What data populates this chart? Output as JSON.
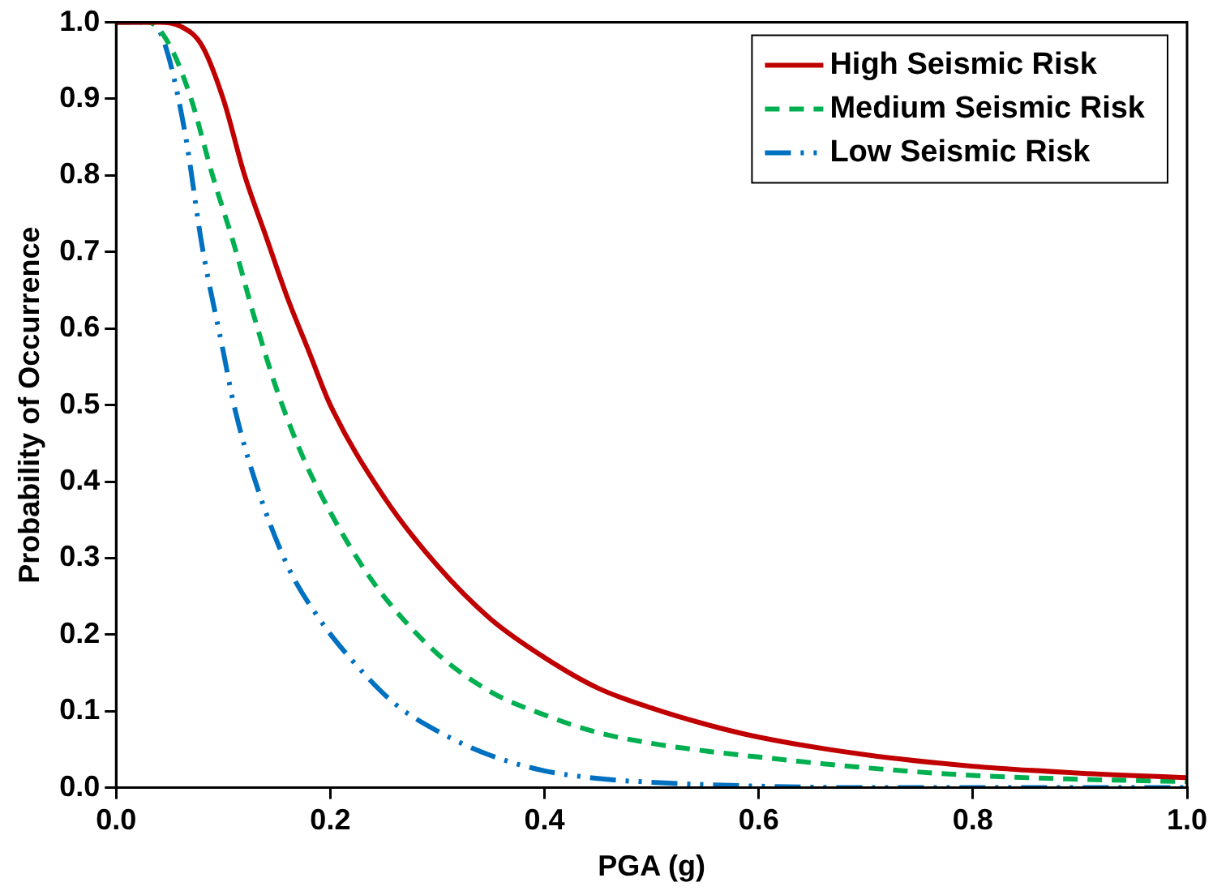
{
  "chart_data": {
    "type": "line",
    "xlabel": "PGA (g)",
    "ylabel": "Probability of Occurrence",
    "xlim": [
      0,
      1
    ],
    "xticks": [
      {
        "value": 0,
        "label": "0.0"
      },
      {
        "value": 0.2,
        "label": "0.2"
      },
      {
        "value": 0.4,
        "label": "0.4"
      },
      {
        "value": 0.6,
        "label": "0.6"
      },
      {
        "value": 0.8,
        "label": "0.8"
      },
      {
        "value": 1,
        "label": "1.0"
      }
    ],
    "ylim": [
      0,
      1
    ],
    "yticks": [
      {
        "value": 0,
        "label": "0.0"
      },
      {
        "value": 0.1,
        "label": "0.1"
      },
      {
        "value": 0.2,
        "label": "0.2"
      },
      {
        "value": 0.3,
        "label": "0.3"
      },
      {
        "value": 0.4,
        "label": "0.4"
      },
      {
        "value": 0.5,
        "label": "0.5"
      },
      {
        "value": 0.6,
        "label": "0.6"
      },
      {
        "value": 0.7,
        "label": "0.7"
      },
      {
        "value": 0.8,
        "label": "0.8"
      },
      {
        "value": 0.9,
        "label": "0.9"
      },
      {
        "value": 1,
        "label": "1.0"
      }
    ],
    "grid": false,
    "legend": "top right",
    "marker": "none",
    "series": [
      {
        "name": "High Seismic Risk",
        "color": "#c00000",
        "line_style": "solid",
        "x": [
          0,
          0.04,
          0.06,
          0.08,
          0.1,
          0.12,
          0.14,
          0.16,
          0.18,
          0.2,
          0.25,
          0.3,
          0.35,
          0.4,
          0.45,
          0.5,
          0.55,
          0.6,
          0.7,
          0.8,
          0.9,
          1
        ],
        "values": [
          1,
          1,
          0.995,
          0.97,
          0.9,
          0.8,
          0.72,
          0.64,
          0.57,
          0.5,
          0.38,
          0.29,
          0.22,
          0.17,
          0.13,
          0.104,
          0.083,
          0.066,
          0.043,
          0.028,
          0.019,
          0.013
        ]
      },
      {
        "name": "Medium Seismic Risk",
        "color": "#00b050",
        "line_style": "dashed",
        "x": [
          0,
          0.03,
          0.05,
          0.07,
          0.09,
          0.11,
          0.13,
          0.15,
          0.175,
          0.2,
          0.225,
          0.25,
          0.3,
          0.35,
          0.4,
          0.45,
          0.5,
          0.55,
          0.6,
          0.7,
          0.8,
          0.9,
          1
        ],
        "values": [
          1,
          1,
          0.97,
          0.9,
          0.8,
          0.71,
          0.61,
          0.52,
          0.43,
          0.36,
          0.3,
          0.25,
          0.175,
          0.125,
          0.095,
          0.072,
          0.058,
          0.048,
          0.04,
          0.026,
          0.016,
          0.011,
          0.008
        ]
      },
      {
        "name": "Low Seismic Risk",
        "color": "#0070c0",
        "line_style": "dotted",
        "x": [
          0,
          0.03,
          0.04,
          0.05,
          0.065,
          0.08,
          0.1,
          0.11,
          0.13,
          0.16,
          0.19,
          0.22,
          0.26,
          0.3,
          0.35,
          0.4,
          0.45,
          0.5,
          0.6,
          0.7,
          1
        ],
        "values": [
          1,
          1,
          0.99,
          0.95,
          0.85,
          0.71,
          0.57,
          0.5,
          0.4,
          0.29,
          0.22,
          0.167,
          0.11,
          0.074,
          0.042,
          0.022,
          0.012,
          0.007,
          0.002,
          0,
          0
        ]
      }
    ]
  }
}
